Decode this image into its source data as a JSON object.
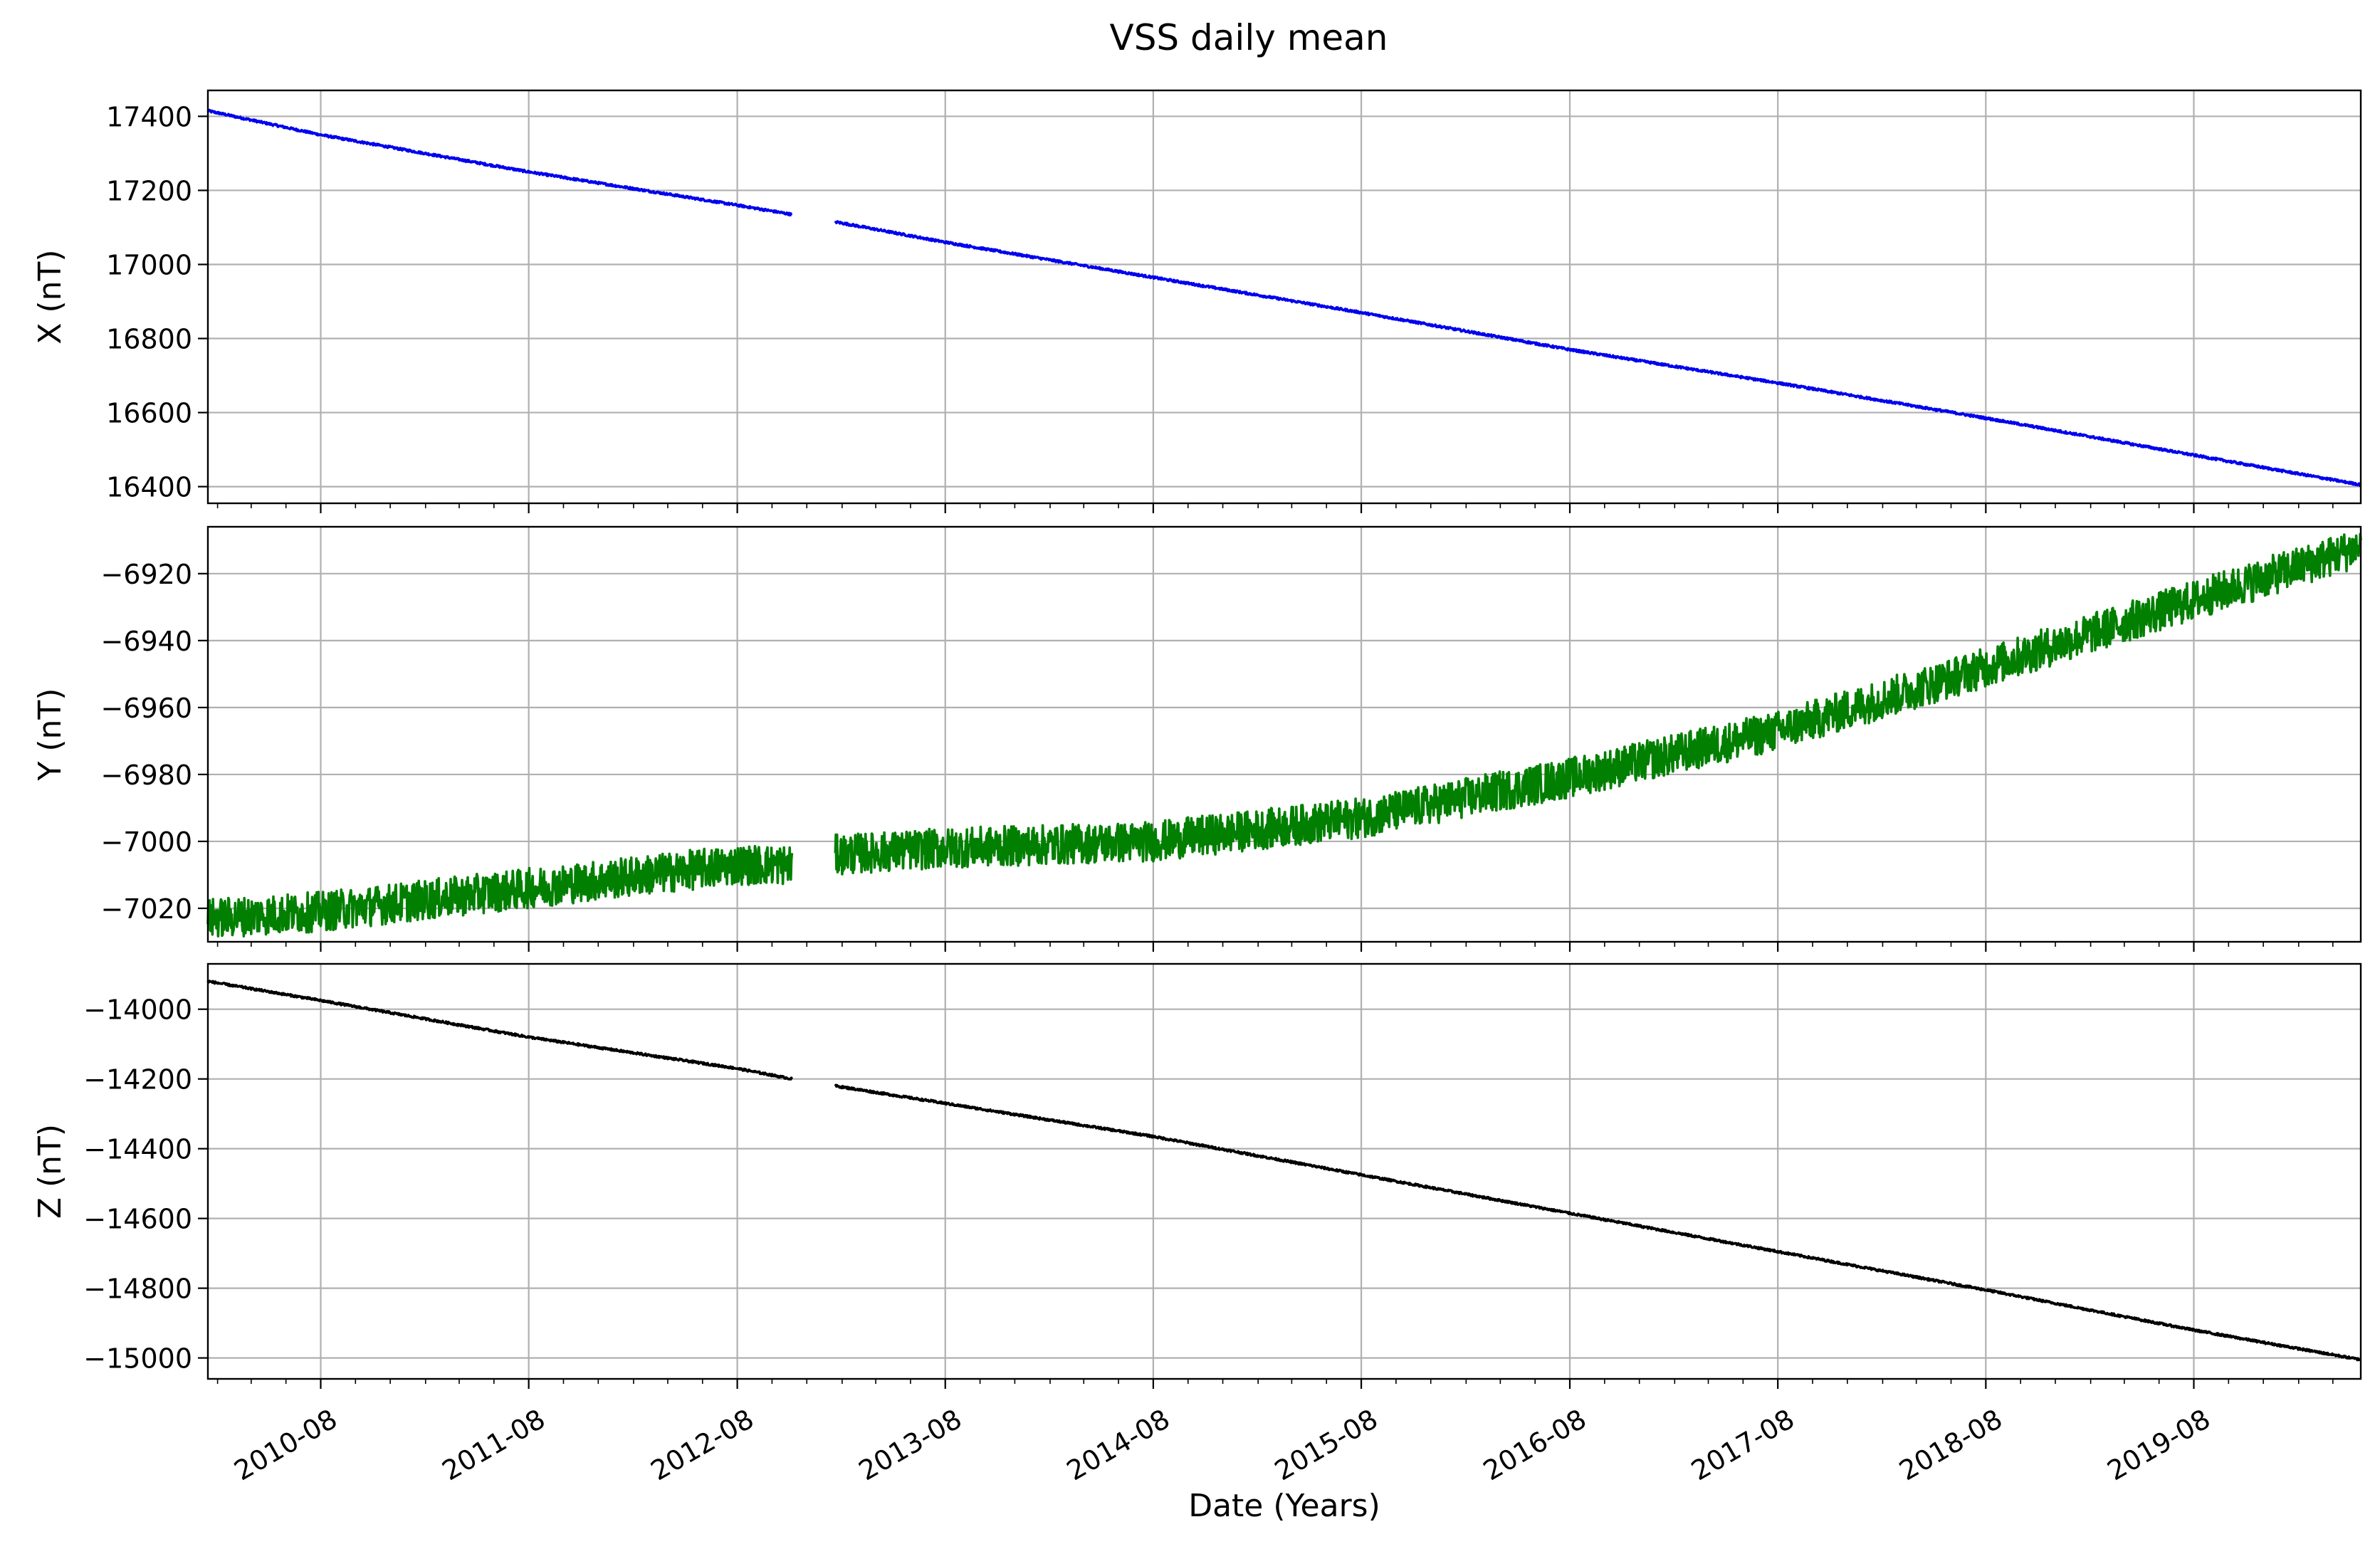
{
  "figure": {
    "title": "VSS daily mean",
    "xlabel": "Date (Years)"
  },
  "chart_data": [
    {
      "type": "line",
      "ylabel": "X (nT)",
      "color": "#0000ee",
      "ylim": [
        16355,
        17470
      ],
      "yticks": [
        16400,
        16600,
        16800,
        17000,
        17200,
        17400
      ],
      "xlim": [
        "2010-01-15",
        "2020-05-20"
      ],
      "grid": true,
      "noise": 3,
      "gap": [
        "2012-11-05",
        "2013-01-20"
      ],
      "series": [
        {
          "name": "",
          "x": [
            "2010-01-15",
            "2010-08-01",
            "2011-08-01",
            "2012-08-01",
            "2012-11-05",
            "2013-01-20",
            "2013-08-01",
            "2014-08-01",
            "2015-08-01",
            "2016-08-01",
            "2017-08-01",
            "2018-08-01",
            "2019-08-01",
            "2020-05-20"
          ],
          "y": [
            17415,
            17350,
            17250,
            17160,
            17135,
            17115,
            17060,
            16965,
            16870,
            16770,
            16680,
            16585,
            16485,
            16405
          ]
        }
      ]
    },
    {
      "type": "line",
      "ylabel": "Y (nT)",
      "color": "#007f00",
      "ylim": [
        -7030,
        -6906
      ],
      "yticks": [
        -7020,
        -7000,
        -6980,
        -6960,
        -6940,
        -6920
      ],
      "xlim": [
        "2010-01-15",
        "2020-05-20"
      ],
      "grid": true,
      "noise": 6,
      "gap": [
        "2012-11-05",
        "2013-01-20"
      ],
      "series": [
        {
          "name": "",
          "x": [
            "2010-01-15",
            "2010-08-01",
            "2011-08-01",
            "2012-08-01",
            "2012-11-05",
            "2013-01-20",
            "2013-08-01",
            "2014-08-01",
            "2015-08-01",
            "2016-08-01",
            "2017-08-01",
            "2018-08-01",
            "2019-08-01",
            "2020-05-20"
          ],
          "y": [
            -7023,
            -7021,
            -7014,
            -7007,
            -7007,
            -7004,
            -7002,
            -7000,
            -6993,
            -6981,
            -6967,
            -6948,
            -6928,
            -6912
          ]
        }
      ]
    },
    {
      "type": "line",
      "ylabel": "Z (nT)",
      "color": "#000000",
      "ylim": [
        -15060,
        -13870
      ],
      "yticks": [
        -15000,
        -14800,
        -14600,
        -14400,
        -14200,
        -14000
      ],
      "xlim": [
        "2010-01-15",
        "2020-05-20"
      ],
      "grid": true,
      "noise": 3,
      "gap": [
        "2012-11-05",
        "2013-01-20"
      ],
      "series": [
        {
          "name": "",
          "x": [
            "2010-01-15",
            "2010-08-01",
            "2011-08-01",
            "2012-08-01",
            "2012-11-05",
            "2013-01-20",
            "2013-08-01",
            "2014-08-01",
            "2015-08-01",
            "2016-08-01",
            "2017-08-01",
            "2018-08-01",
            "2019-08-01",
            "2020-05-20"
          ],
          "y": [
            -13920,
            -13975,
            -14080,
            -14170,
            -14200,
            -14220,
            -14270,
            -14365,
            -14475,
            -14585,
            -14695,
            -14805,
            -14920,
            -15005
          ]
        }
      ]
    }
  ],
  "xaxis": {
    "major_ticks": [
      "2010-08",
      "2011-08",
      "2012-08",
      "2013-08",
      "2014-08",
      "2015-08",
      "2016-08",
      "2017-08",
      "2018-08",
      "2019-08"
    ],
    "minor_interval_months": 2
  }
}
